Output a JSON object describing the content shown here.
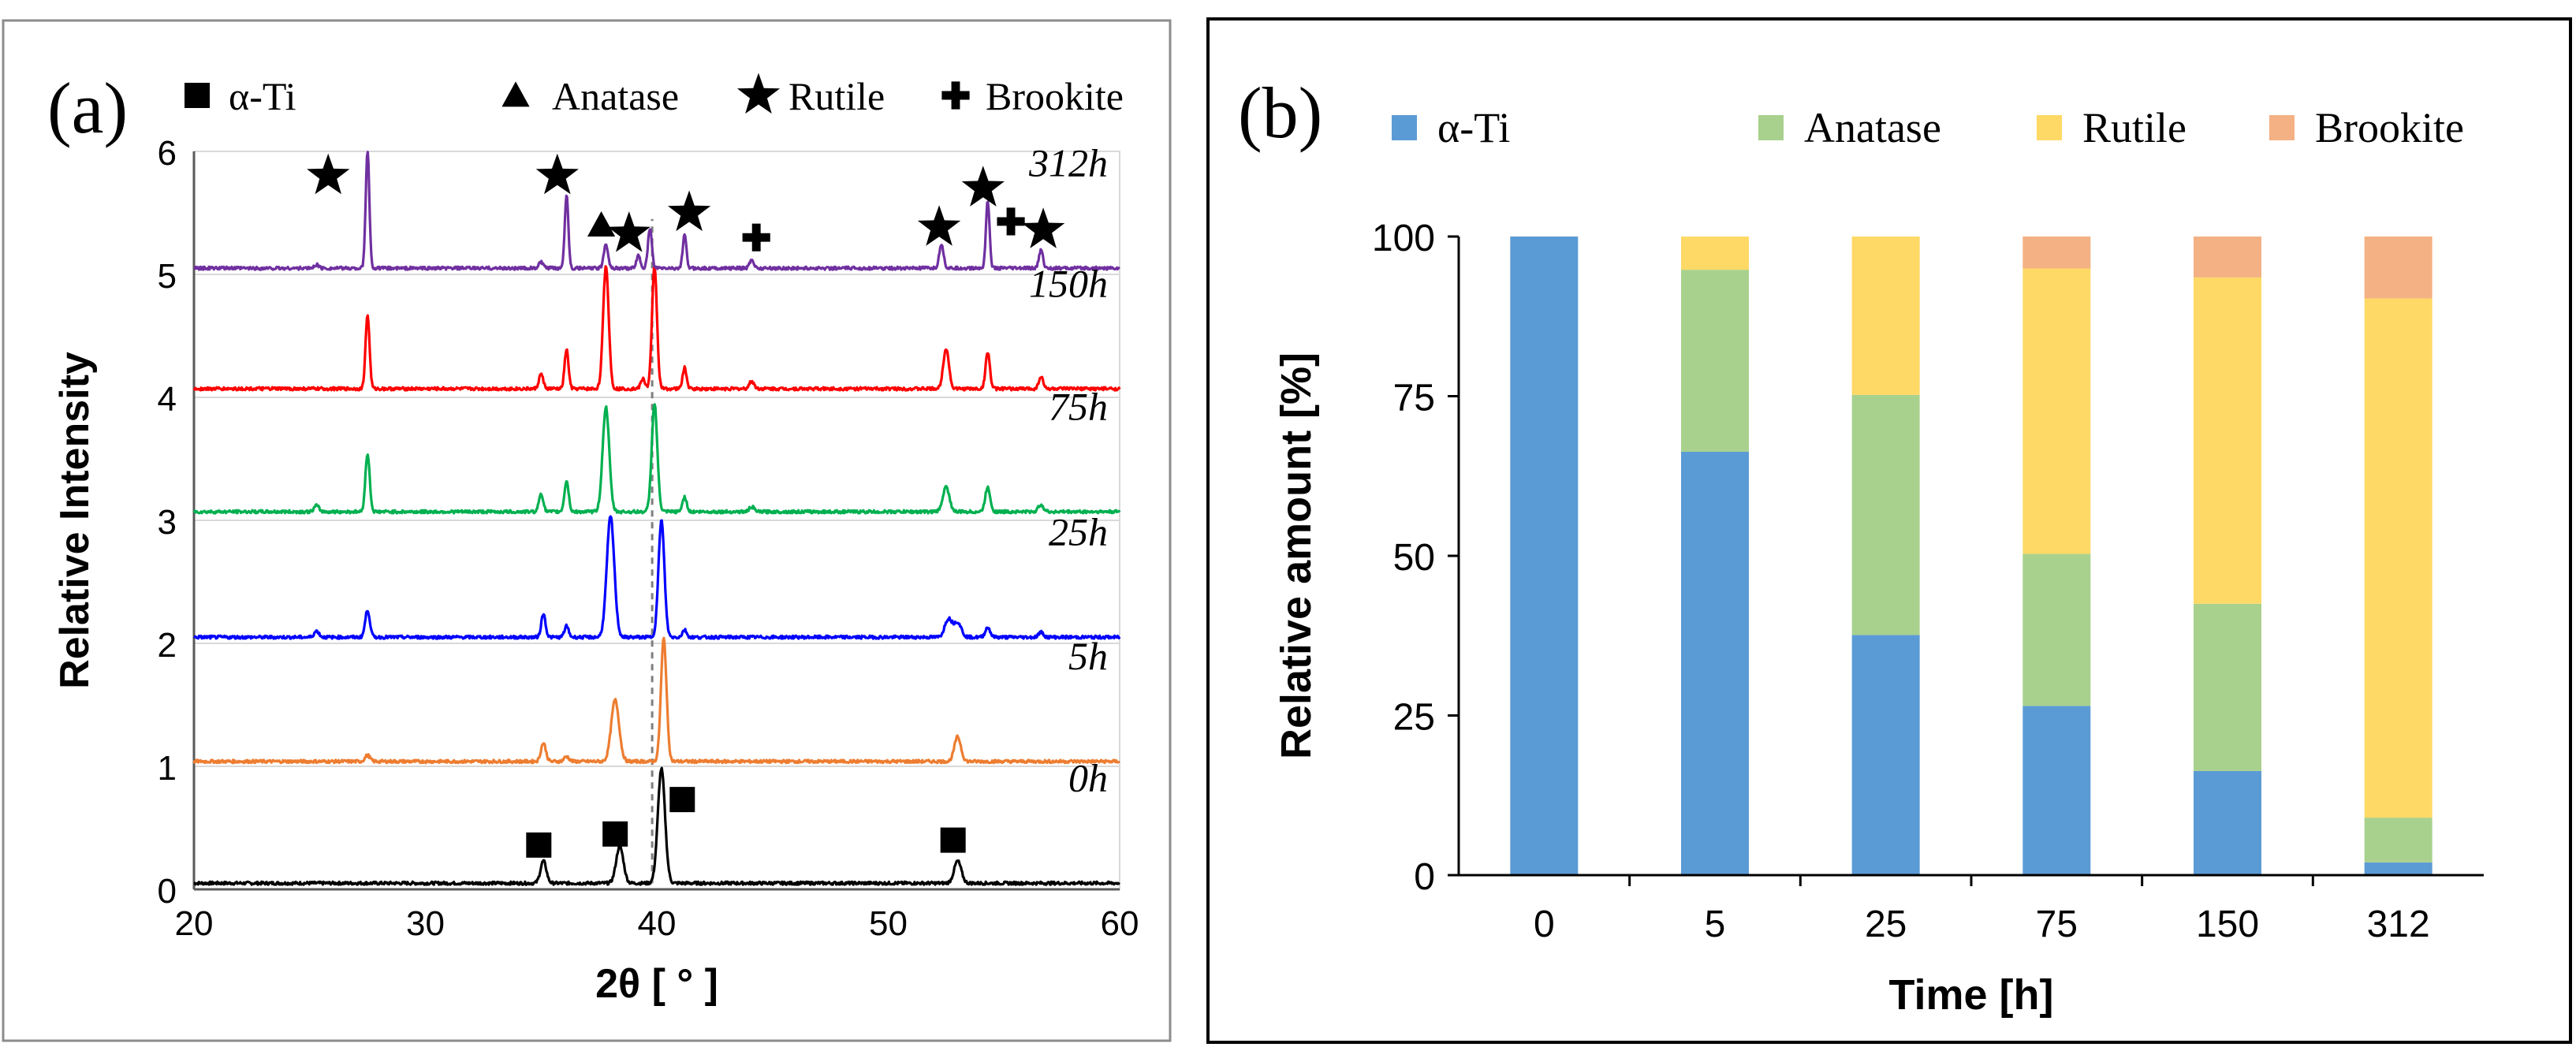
{
  "chart_data": [
    {
      "type": "line",
      "panel_label": "(a)",
      "xlabel": "2θ [ ° ]",
      "ylabel": "Relative Intensity",
      "xlim": [
        20,
        60
      ],
      "ylim": [
        0,
        6
      ],
      "x_ticks": [
        "20",
        "30",
        "40",
        "50",
        "60"
      ],
      "y_ticks": [
        "0",
        "1",
        "2",
        "3",
        "4",
        "5",
        "6"
      ],
      "legend": [
        {
          "symbol": "square",
          "label": "α-Ti"
        },
        {
          "symbol": "triangle",
          "label": "Anatase"
        },
        {
          "symbol": "star",
          "label": "Rutile"
        },
        {
          "symbol": "cross",
          "label": "Brookite"
        }
      ],
      "reference_line_x": 39.8,
      "series": [
        {
          "name": "0h",
          "label": "0h",
          "color": "#000000",
          "offset": 0.05,
          "peaks": [
            {
              "x": 35.1,
              "h": 0.18,
              "w": 0.18
            },
            {
              "x": 38.4,
              "h": 0.3,
              "w": 0.22
            },
            {
              "x": 40.2,
              "h": 0.93,
              "w": 0.22
            },
            {
              "x": 53.0,
              "h": 0.18,
              "w": 0.22
            }
          ],
          "markers": [
            {
              "symbol": "square",
              "x": 34.9,
              "y": 0.36
            },
            {
              "symbol": "square",
              "x": 38.2,
              "y": 0.45
            },
            {
              "symbol": "square",
              "x": 41.1,
              "y": 0.73
            },
            {
              "symbol": "square",
              "x": 52.8,
              "y": 0.4
            }
          ]
        },
        {
          "name": "5h",
          "label": "5h",
          "color": "#ED7D31",
          "offset": 1.04,
          "peaks": [
            {
              "x": 27.5,
              "h": 0.05,
              "w": 0.15
            },
            {
              "x": 35.1,
              "h": 0.15,
              "w": 0.15
            },
            {
              "x": 36.1,
              "h": 0.04,
              "w": 0.15
            },
            {
              "x": 38.2,
              "h": 0.5,
              "w": 0.24
            },
            {
              "x": 40.3,
              "h": 1.0,
              "w": 0.17
            },
            {
              "x": 53.0,
              "h": 0.2,
              "w": 0.2
            }
          ],
          "markers": []
        },
        {
          "name": "25h",
          "label": "25h",
          "color": "#0000FF",
          "offset": 2.05,
          "peaks": [
            {
              "x": 25.3,
              "h": 0.05,
              "w": 0.15
            },
            {
              "x": 27.5,
              "h": 0.22,
              "w": 0.14
            },
            {
              "x": 35.1,
              "h": 0.19,
              "w": 0.13
            },
            {
              "x": 36.1,
              "h": 0.09,
              "w": 0.13
            },
            {
              "x": 38.0,
              "h": 0.98,
              "w": 0.23
            },
            {
              "x": 40.2,
              "h": 0.95,
              "w": 0.18
            },
            {
              "x": 41.2,
              "h": 0.06,
              "w": 0.13
            },
            {
              "x": 52.6,
              "h": 0.15,
              "w": 0.22
            },
            {
              "x": 53.0,
              "h": 0.12,
              "w": 0.22
            },
            {
              "x": 54.3,
              "h": 0.08,
              "w": 0.15
            },
            {
              "x": 56.6,
              "h": 0.04,
              "w": 0.15
            }
          ],
          "markers": []
        },
        {
          "name": "75h",
          "label": "75h",
          "color": "#00B050",
          "offset": 3.07,
          "peaks": [
            {
              "x": 25.3,
              "h": 0.05,
              "w": 0.15
            },
            {
              "x": 27.5,
              "h": 0.47,
              "w": 0.13
            },
            {
              "x": 35.0,
              "h": 0.15,
              "w": 0.13
            },
            {
              "x": 36.1,
              "h": 0.25,
              "w": 0.13
            },
            {
              "x": 37.8,
              "h": 0.85,
              "w": 0.2
            },
            {
              "x": 39.9,
              "h": 0.88,
              "w": 0.17
            },
            {
              "x": 41.2,
              "h": 0.12,
              "w": 0.13
            },
            {
              "x": 44.1,
              "h": 0.04,
              "w": 0.15
            },
            {
              "x": 52.5,
              "h": 0.2,
              "w": 0.2
            },
            {
              "x": 54.3,
              "h": 0.2,
              "w": 0.15
            },
            {
              "x": 56.6,
              "h": 0.06,
              "w": 0.15
            }
          ],
          "markers": []
        },
        {
          "name": "150h",
          "label": "150h",
          "color": "#FF0000",
          "offset": 4.07,
          "peaks": [
            {
              "x": 27.5,
              "h": 0.6,
              "w": 0.12
            },
            {
              "x": 35.0,
              "h": 0.12,
              "w": 0.13
            },
            {
              "x": 36.1,
              "h": 0.32,
              "w": 0.12
            },
            {
              "x": 37.8,
              "h": 1.0,
              "w": 0.17
            },
            {
              "x": 39.4,
              "h": 0.08,
              "w": 0.13
            },
            {
              "x": 39.9,
              "h": 1.0,
              "w": 0.15
            },
            {
              "x": 41.2,
              "h": 0.17,
              "w": 0.12
            },
            {
              "x": 44.1,
              "h": 0.06,
              "w": 0.15
            },
            {
              "x": 52.5,
              "h": 0.33,
              "w": 0.17
            },
            {
              "x": 54.3,
              "h": 0.3,
              "w": 0.13
            },
            {
              "x": 56.6,
              "h": 0.1,
              "w": 0.13
            }
          ],
          "markers": []
        },
        {
          "name": "312h",
          "label": "312h",
          "color": "#7030A0",
          "offset": 5.05,
          "peaks": [
            {
              "x": 25.3,
              "h": 0.03,
              "w": 0.13
            },
            {
              "x": 27.5,
              "h": 0.95,
              "w": 0.11
            },
            {
              "x": 35.0,
              "h": 0.05,
              "w": 0.13
            },
            {
              "x": 36.1,
              "h": 0.6,
              "w": 0.11
            },
            {
              "x": 37.8,
              "h": 0.2,
              "w": 0.13
            },
            {
              "x": 39.2,
              "h": 0.1,
              "w": 0.12
            },
            {
              "x": 39.7,
              "h": 0.32,
              "w": 0.12
            },
            {
              "x": 41.2,
              "h": 0.27,
              "w": 0.11
            },
            {
              "x": 44.1,
              "h": 0.07,
              "w": 0.13
            },
            {
              "x": 52.3,
              "h": 0.2,
              "w": 0.13
            },
            {
              "x": 54.3,
              "h": 0.55,
              "w": 0.11
            },
            {
              "x": 56.6,
              "h": 0.15,
              "w": 0.12
            }
          ],
          "markers": [
            {
              "symbol": "star",
              "x": 25.8,
              "y": 5.8
            },
            {
              "symbol": "star",
              "x": 35.7,
              "y": 5.8
            },
            {
              "symbol": "triangle",
              "x": 37.6,
              "y": 5.4
            },
            {
              "symbol": "star",
              "x": 38.8,
              "y": 5.33
            },
            {
              "symbol": "star",
              "x": 41.4,
              "y": 5.5
            },
            {
              "symbol": "cross",
              "x": 44.3,
              "y": 5.3
            },
            {
              "symbol": "star",
              "x": 52.2,
              "y": 5.38
            },
            {
              "symbol": "star",
              "x": 54.1,
              "y": 5.7
            },
            {
              "symbol": "cross",
              "x": 55.3,
              "y": 5.43
            },
            {
              "symbol": "star",
              "x": 56.7,
              "y": 5.36
            }
          ]
        }
      ]
    },
    {
      "type": "bar",
      "stacked": true,
      "panel_label": "(b)",
      "xlabel": "Time [h]",
      "ylabel": "Relative amount [%]",
      "ylim": [
        0,
        100
      ],
      "y_ticks": [
        "0",
        "25",
        "50",
        "75",
        "100"
      ],
      "categories": [
        "0",
        "5",
        "25",
        "75",
        "150",
        "312"
      ],
      "series": [
        {
          "name": "α-Ti",
          "color": "#5B9BD5",
          "values": [
            100,
            66.3,
            37.6,
            26.5,
            16.3,
            2
          ]
        },
        {
          "name": "Anatase",
          "color": "#A9D18E",
          "values": [
            0,
            28.5,
            37.6,
            23.8,
            26.2,
            7
          ]
        },
        {
          "name": "Rutile",
          "color": "#FFD966",
          "values": [
            0,
            5.2,
            24.8,
            44.7,
            51.1,
            81.3
          ]
        },
        {
          "name": "Brookite",
          "color": "#F4B183",
          "values": [
            0,
            0,
            0,
            5,
            6.4,
            9.7
          ]
        }
      ]
    }
  ]
}
